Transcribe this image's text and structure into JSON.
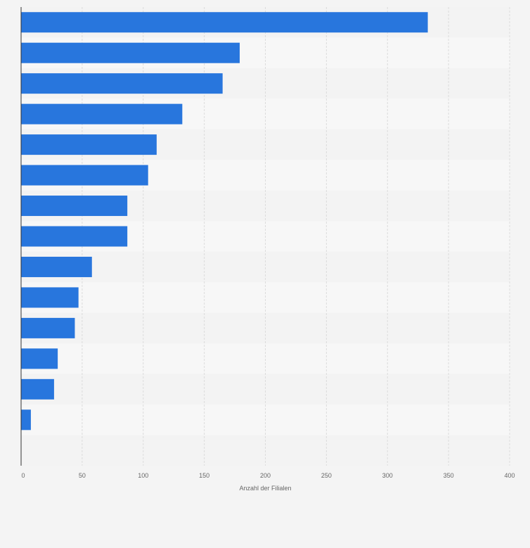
{
  "chart_data": {
    "type": "bar",
    "orientation": "horizontal",
    "categories": [
      "",
      "",
      "",
      "",
      "",
      "",
      "",
      "",
      "",
      "",
      "",
      "",
      "",
      ""
    ],
    "values": [
      333,
      179,
      165,
      132,
      111,
      104,
      87,
      87,
      58,
      47,
      44,
      30,
      27,
      8
    ],
    "xlabel": "Anzahl der Filialen",
    "ylabel": "",
    "xlim": [
      0,
      400
    ],
    "xticks": [
      0,
      50,
      100,
      150,
      200,
      250,
      300,
      350,
      400
    ],
    "tick_labels": [
      "0",
      "50",
      "100",
      "150",
      "200",
      "250",
      "300",
      "350",
      "400"
    ],
    "grid": true,
    "legend": "none",
    "colors": {
      "bar": "#2876dd",
      "band_even": "#f7f7f7",
      "band_odd": "#f3f3f3",
      "grid": "#dcdcdc",
      "axis": "#333333",
      "background": "#f4f4f4"
    }
  }
}
